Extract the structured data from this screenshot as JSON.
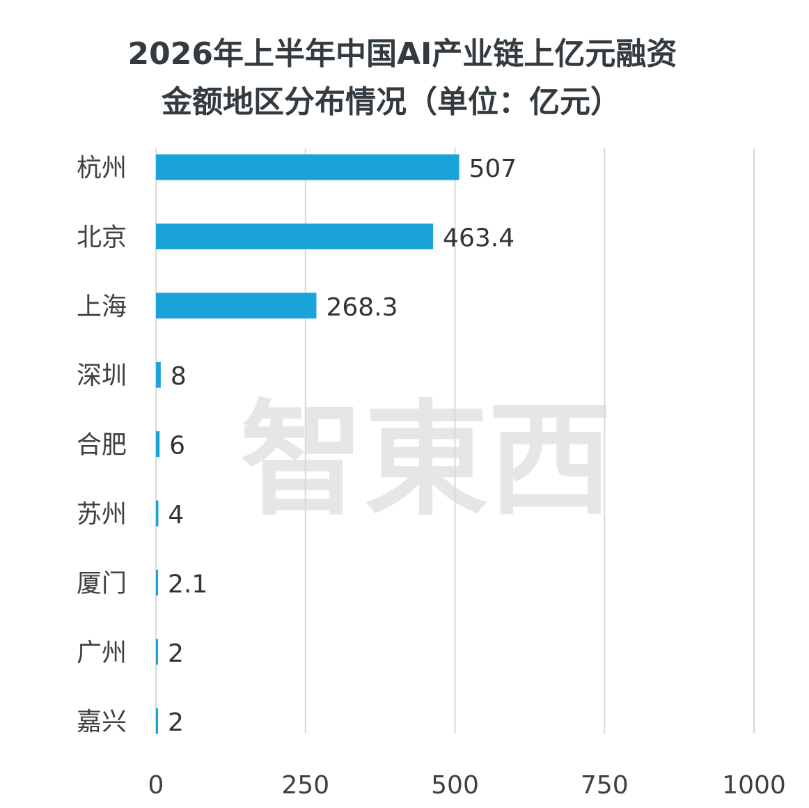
{
  "chart_data": {
    "type": "bar",
    "orientation": "horizontal",
    "title": "2026年上半年中国AI产业链上亿元融资金额地区分布情况（单位：亿元）",
    "title_lines": [
      "2026年上半年中国AI产业链上亿元融资",
      "金额地区分布情况（单位：亿元）"
    ],
    "categories": [
      "杭州",
      "北京",
      "上海",
      "深圳",
      "合肥",
      "苏州",
      "厦门",
      "广州",
      "嘉兴"
    ],
    "values": [
      507,
      463.4,
      268.3,
      8,
      6,
      4,
      2.1,
      2,
      2
    ],
    "value_labels": [
      "507",
      "463.4",
      "268.3",
      "8",
      "6",
      "4",
      "2.1",
      "2",
      "2"
    ],
    "xlim": [
      0,
      1000
    ],
    "xticks": [
      0,
      250,
      500,
      750,
      1000
    ],
    "xtick_labels": [
      "0",
      "250",
      "500",
      "750",
      "1000"
    ],
    "xlabel": "",
    "ylabel": "",
    "grid": true,
    "legend": "none",
    "bar_color": "#1aa3d9",
    "grid_color": "#d9d9d9"
  },
  "watermark": {
    "text": "智東西",
    "color": "#e6e6e6"
  }
}
